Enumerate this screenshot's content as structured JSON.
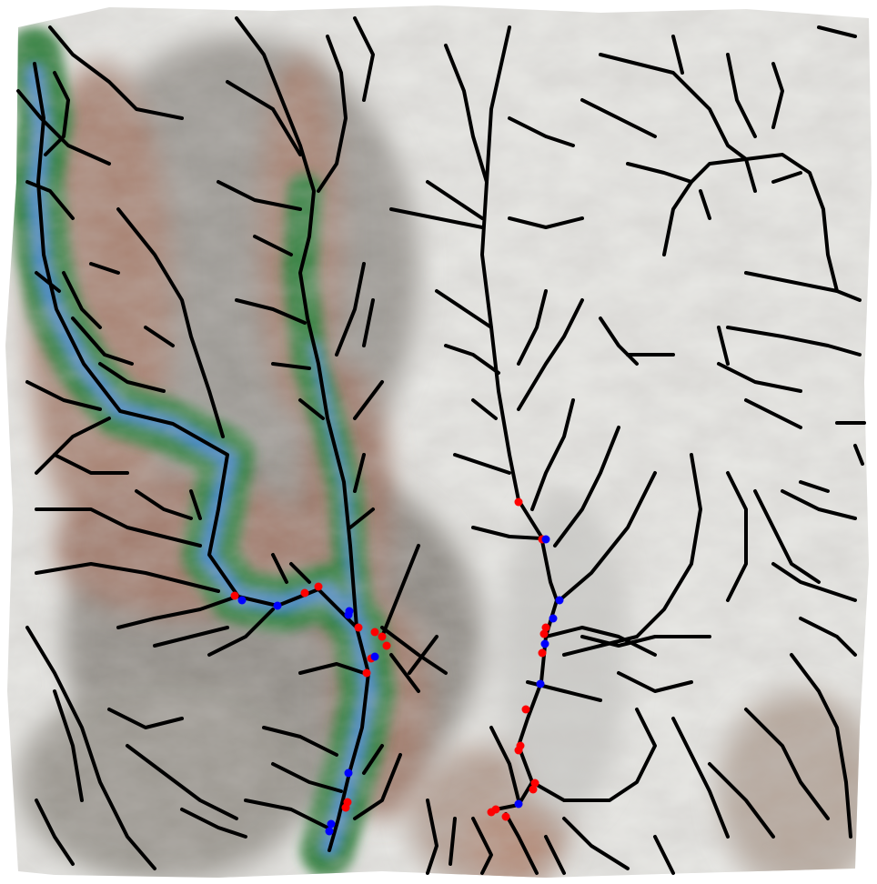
{
  "map": {
    "kind": "shaded-relief-drainage-network",
    "legend": null,
    "title": "",
    "colors": {
      "background": "#ffffff",
      "high_elevation": "#f2f2f0",
      "mid_elevation": "#8d8a85",
      "low_elevation_brown": "#a98474",
      "lowland_green": "#2f7f3a",
      "water_blue": "#3f86c8",
      "stream": "#000000",
      "marker_red": "#ff0000",
      "marker_blue": "#0000ff"
    },
    "marker_counts": {
      "red": 24,
      "blue": 14
    },
    "icons": [
      "stream-network",
      "red-point-marker",
      "blue-point-marker"
    ]
  }
}
